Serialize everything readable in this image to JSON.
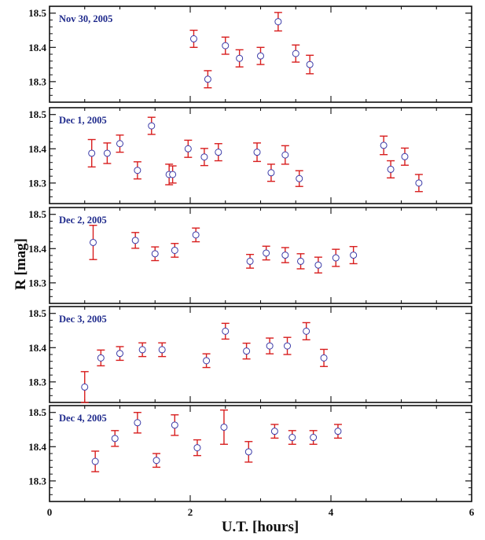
{
  "chart_data": {
    "type": "scatter",
    "xlabel": "U.T. [hours]",
    "ylabel": "R [mag]",
    "xlim": [
      0,
      6
    ],
    "ylim": [
      18.24,
      18.52
    ],
    "x_ticks": [
      "0",
      "2",
      "4",
      "6"
    ],
    "y_ticks": [
      "18.3",
      "18.4",
      "18.5"
    ],
    "y_tick_values": [
      18.3,
      18.4,
      18.5
    ],
    "x_tick_values": [
      0,
      2,
      4,
      6
    ],
    "grid": false,
    "marker_color": "#3b3ba8",
    "errorbar_color": "#d81e1e",
    "panel_label_color": "#1f2a8c",
    "panels": [
      {
        "label": "Nov 30, 2005",
        "points": [
          {
            "x": 2.05,
            "y": 18.425,
            "err": 0.025
          },
          {
            "x": 2.25,
            "y": 18.307,
            "err": 0.025
          },
          {
            "x": 2.5,
            "y": 18.405,
            "err": 0.025
          },
          {
            "x": 2.7,
            "y": 18.368,
            "err": 0.025
          },
          {
            "x": 3.0,
            "y": 18.375,
            "err": 0.025
          },
          {
            "x": 3.25,
            "y": 18.475,
            "err": 0.027
          },
          {
            "x": 3.5,
            "y": 18.382,
            "err": 0.025
          },
          {
            "x": 3.7,
            "y": 18.35,
            "err": 0.027
          }
        ]
      },
      {
        "label": "Dec 1, 2005",
        "points": [
          {
            "x": 0.6,
            "y": 18.387,
            "err": 0.04
          },
          {
            "x": 0.82,
            "y": 18.387,
            "err": 0.03
          },
          {
            "x": 1.0,
            "y": 18.415,
            "err": 0.025
          },
          {
            "x": 1.25,
            "y": 18.337,
            "err": 0.025
          },
          {
            "x": 1.45,
            "y": 18.467,
            "err": 0.025
          },
          {
            "x": 1.7,
            "y": 18.325,
            "err": 0.03
          },
          {
            "x": 1.75,
            "y": 18.325,
            "err": 0.025
          },
          {
            "x": 1.97,
            "y": 18.4,
            "err": 0.025
          },
          {
            "x": 2.2,
            "y": 18.376,
            "err": 0.025
          },
          {
            "x": 2.4,
            "y": 18.39,
            "err": 0.025
          },
          {
            "x": 2.95,
            "y": 18.39,
            "err": 0.027
          },
          {
            "x": 3.15,
            "y": 18.33,
            "err": 0.025
          },
          {
            "x": 3.35,
            "y": 18.382,
            "err": 0.027
          },
          {
            "x": 3.55,
            "y": 18.313,
            "err": 0.023
          },
          {
            "x": 4.75,
            "y": 18.41,
            "err": 0.027
          },
          {
            "x": 4.85,
            "y": 18.34,
            "err": 0.025
          },
          {
            "x": 5.05,
            "y": 18.377,
            "err": 0.025
          },
          {
            "x": 5.25,
            "y": 18.3,
            "err": 0.025
          }
        ]
      },
      {
        "label": "Dec 2, 2005",
        "points": [
          {
            "x": 0.62,
            "y": 18.418,
            "err": 0.05
          },
          {
            "x": 1.22,
            "y": 18.424,
            "err": 0.023
          },
          {
            "x": 1.5,
            "y": 18.385,
            "err": 0.02
          },
          {
            "x": 1.78,
            "y": 18.395,
            "err": 0.02
          },
          {
            "x": 2.08,
            "y": 18.44,
            "err": 0.02
          },
          {
            "x": 2.85,
            "y": 18.363,
            "err": 0.02
          },
          {
            "x": 3.08,
            "y": 18.387,
            "err": 0.02
          },
          {
            "x": 3.35,
            "y": 18.381,
            "err": 0.022
          },
          {
            "x": 3.57,
            "y": 18.363,
            "err": 0.022
          },
          {
            "x": 3.82,
            "y": 18.352,
            "err": 0.023
          },
          {
            "x": 4.07,
            "y": 18.373,
            "err": 0.025
          },
          {
            "x": 4.32,
            "y": 18.381,
            "err": 0.025
          }
        ]
      },
      {
        "label": "Dec 3, 2005",
        "points": [
          {
            "x": 0.5,
            "y": 18.285,
            "err": 0.045
          },
          {
            "x": 0.73,
            "y": 18.37,
            "err": 0.023
          },
          {
            "x": 1.0,
            "y": 18.383,
            "err": 0.02
          },
          {
            "x": 1.32,
            "y": 18.394,
            "err": 0.02
          },
          {
            "x": 1.6,
            "y": 18.394,
            "err": 0.02
          },
          {
            "x": 2.23,
            "y": 18.362,
            "err": 0.02
          },
          {
            "x": 2.5,
            "y": 18.448,
            "err": 0.023
          },
          {
            "x": 2.8,
            "y": 18.39,
            "err": 0.023
          },
          {
            "x": 3.13,
            "y": 18.405,
            "err": 0.023
          },
          {
            "x": 3.38,
            "y": 18.405,
            "err": 0.025
          },
          {
            "x": 3.65,
            "y": 18.448,
            "err": 0.025
          },
          {
            "x": 3.9,
            "y": 18.37,
            "err": 0.025
          }
        ]
      },
      {
        "label": "Dec 4, 2005",
        "points": [
          {
            "x": 0.65,
            "y": 18.357,
            "err": 0.03
          },
          {
            "x": 0.93,
            "y": 18.424,
            "err": 0.023
          },
          {
            "x": 1.25,
            "y": 18.47,
            "err": 0.03
          },
          {
            "x": 1.52,
            "y": 18.36,
            "err": 0.02
          },
          {
            "x": 1.78,
            "y": 18.463,
            "err": 0.03
          },
          {
            "x": 2.1,
            "y": 18.397,
            "err": 0.023
          },
          {
            "x": 2.48,
            "y": 18.457,
            "err": 0.05
          },
          {
            "x": 2.83,
            "y": 18.385,
            "err": 0.03
          },
          {
            "x": 3.2,
            "y": 18.445,
            "err": 0.02
          },
          {
            "x": 3.45,
            "y": 18.427,
            "err": 0.02
          },
          {
            "x": 3.75,
            "y": 18.427,
            "err": 0.02
          },
          {
            "x": 4.1,
            "y": 18.445,
            "err": 0.02
          }
        ]
      }
    ]
  }
}
